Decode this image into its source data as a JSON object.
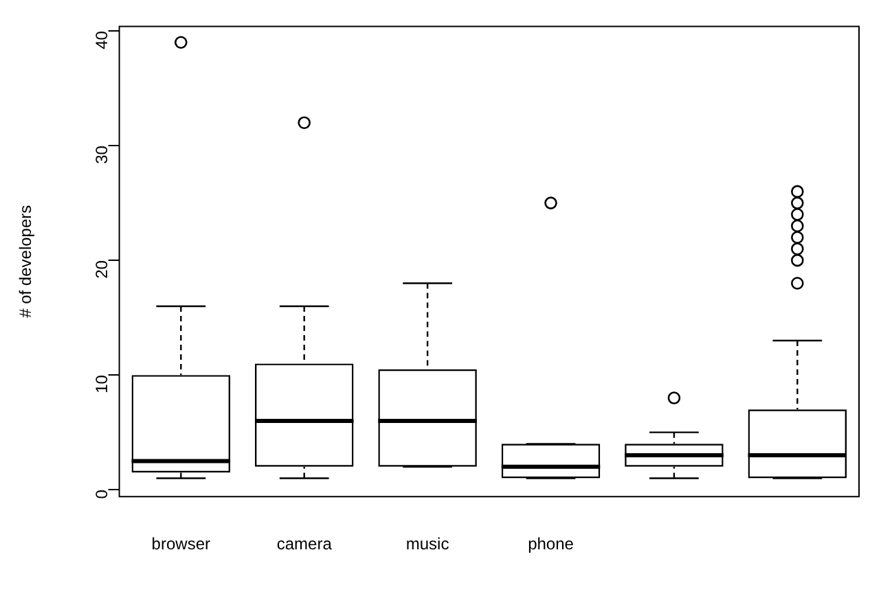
{
  "chart_data": {
    "type": "box",
    "ylabel": "# of developers",
    "categories": [
      "browser",
      "camera",
      "music",
      "phone",
      null,
      null
    ],
    "boxes": [
      {
        "low": 1,
        "q1": 1.5,
        "median": 2.5,
        "q3": 10,
        "high": 16,
        "outliers": [
          39
        ]
      },
      {
        "low": 1,
        "q1": 2,
        "median": 6,
        "q3": 11,
        "high": 16,
        "outliers": [
          32
        ]
      },
      {
        "low": 2,
        "q1": 2,
        "median": 6,
        "q3": 10.5,
        "high": 18
      },
      {
        "low": 1,
        "q1": 1,
        "median": 2,
        "q3": 4,
        "high": 4,
        "outliers": [
          25
        ]
      },
      {
        "low": 1,
        "q1": 2,
        "median": 3,
        "q3": 4,
        "high": 5,
        "outliers": [
          8
        ]
      },
      {
        "low": 1,
        "q1": 1,
        "median": 3,
        "q3": 7,
        "high": 13,
        "outliers": [
          18,
          20,
          21,
          22,
          23,
          24,
          25,
          26
        ]
      }
    ],
    "color": "#000000",
    "ylim": [
      -0.6,
      40.4
    ],
    "yticks": [
      0,
      10,
      20,
      30,
      40
    ],
    "grid": false,
    "legend": false
  }
}
